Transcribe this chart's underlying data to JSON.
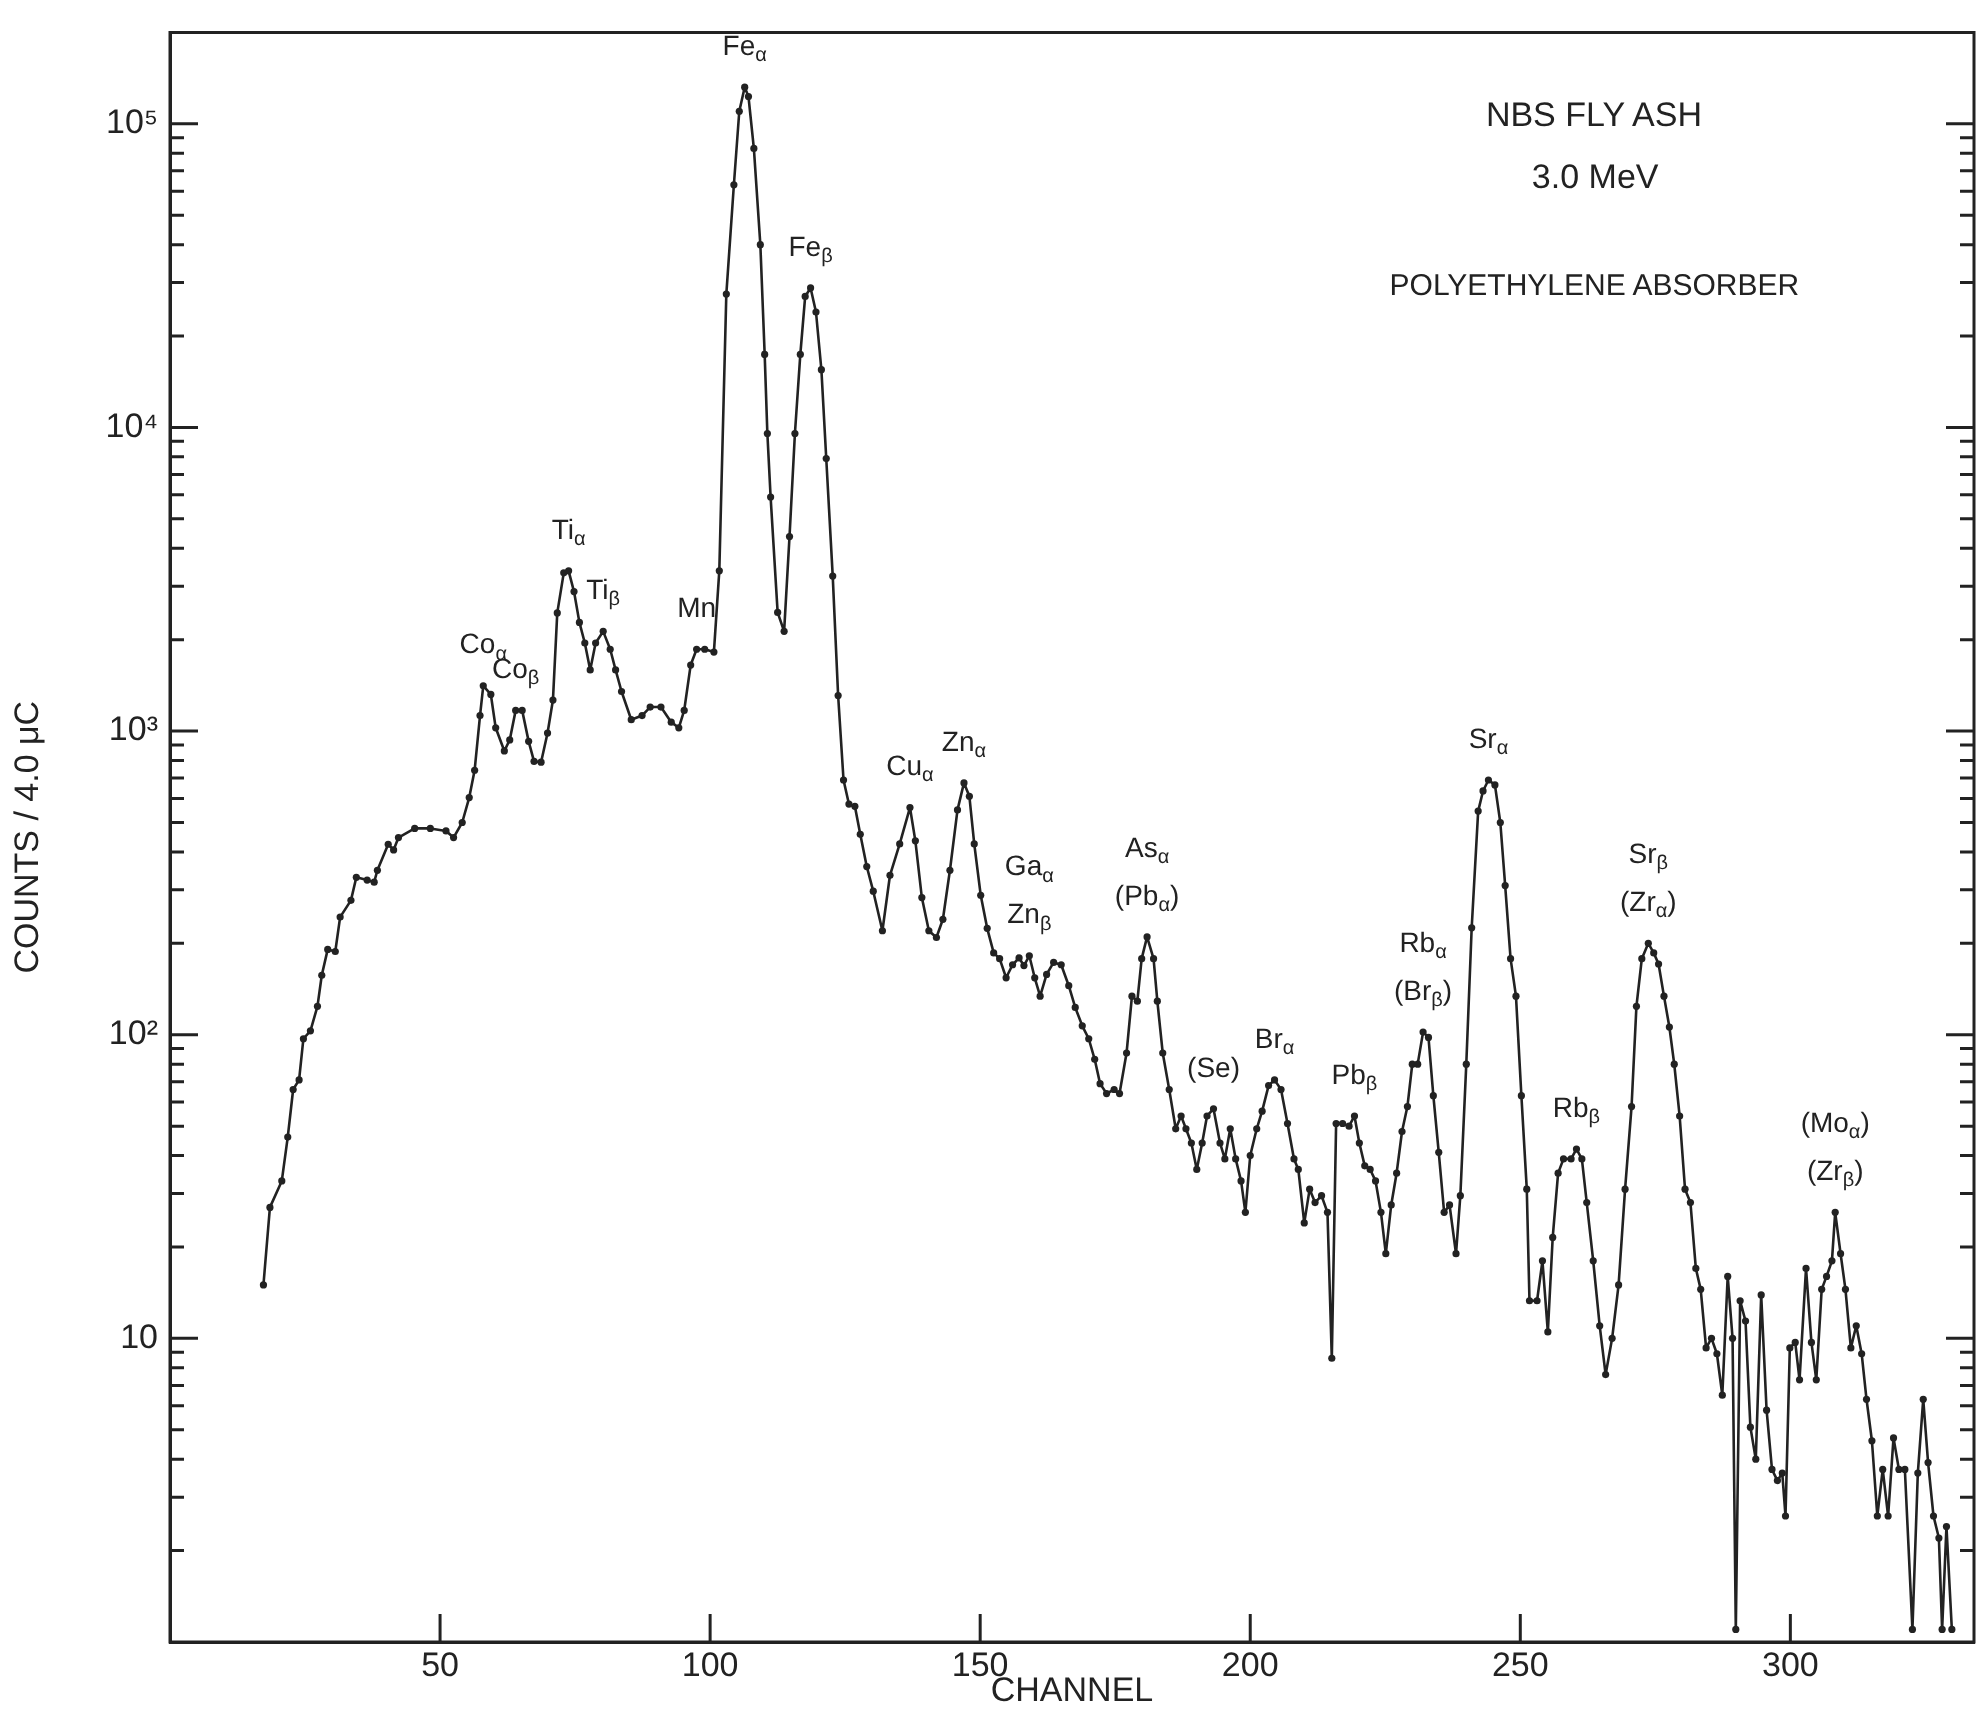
{
  "chart_data": {
    "type": "line",
    "title": "NBS FLY ASH",
    "subtitle": "3.0 MeV",
    "xlabel": "CHANNEL",
    "ylabel": "COUNTS / 4.0 μC",
    "x": [
      17.3,
      18.5,
      20.7,
      21.8,
      22.8,
      23.9,
      24.7,
      26,
      27.3,
      28.1,
      29.2,
      30.6,
      31.5,
      33.5,
      34.5,
      36.5,
      37.8,
      38.4,
      40.4,
      41.4,
      42.3,
      45.3,
      48.2,
      51.1,
      52.5,
      54.1,
      55.4,
      56.4,
      57.4,
      58,
      59.4,
      60.3,
      61.9,
      62.9,
      64,
      65.2,
      66.4,
      67.4,
      68.7,
      69.9,
      70.9,
      71.7,
      72.9,
      73.8,
      74.8,
      75.8,
      76.8,
      77.8,
      78.8,
      80.2,
      81.5,
      82.5,
      83.6,
      85.4,
      87.4,
      88.9,
      90.9,
      92.8,
      94.2,
      95.2,
      96.4,
      97.5,
      99,
      100.7,
      101.7,
      103,
      104.4,
      105.4,
      106.4,
      107.1,
      108.1,
      109.3,
      110.1,
      110.6,
      111.2,
      112.5,
      113.7,
      114.7,
      115.7,
      116.7,
      117.6,
      118.6,
      119.6,
      120.6,
      121.5,
      122.7,
      123.7,
      124.7,
      125.7,
      126.8,
      127.8,
      129,
      130.2,
      131.9,
      133.3,
      135.1,
      137,
      138,
      139.2,
      140.5,
      141.9,
      143.1,
      144.4,
      145.8,
      147,
      148,
      148.9,
      150.1,
      151.3,
      152.5,
      153.6,
      154.8,
      156,
      157.2,
      158.1,
      159.1,
      160.1,
      161.1,
      162.3,
      163.6,
      165,
      166.4,
      167.6,
      168.9,
      170.1,
      171.2,
      172.2,
      173.4,
      174.8,
      175.8,
      177.1,
      178.1,
      179.1,
      179.9,
      180.9,
      182.1,
      182.8,
      183.8,
      185,
      186.2,
      187.2,
      188.1,
      189.1,
      190.1,
      191.1,
      192,
      193.2,
      194.4,
      195.3,
      196.3,
      197.3,
      198.3,
      199.1,
      200,
      201.2,
      202.2,
      203.4,
      204.5,
      205.7,
      206.9,
      208.1,
      208.9,
      210,
      211,
      212,
      213.2,
      214.3,
      215.1,
      215.9,
      217.1,
      218.3,
      219.3,
      220.2,
      221.2,
      222.2,
      223.2,
      224.2,
      225.1,
      226.1,
      227.1,
      228.1,
      229.1,
      230,
      231,
      232,
      233,
      233.9,
      234.9,
      235.9,
      236.9,
      238.1,
      238.9,
      240,
      241,
      242.2,
      243.1,
      244.1,
      245.3,
      246.3,
      247.2,
      248.2,
      249.2,
      250.2,
      251.2,
      251.7,
      253.1,
      254.1,
      255.1,
      256,
      257,
      258,
      259.4,
      260.4,
      261.4,
      262.3,
      263.5,
      264.7,
      265.8,
      267,
      268.2,
      269.4,
      270.6,
      271.5,
      272.5,
      273.7,
      274.7,
      275.6,
      276.6,
      277.6,
      278.5,
      279.5,
      280.5,
      281.5,
      282.5,
      283.4,
      284.4,
      285.4,
      286.4,
      287.4,
      288.4,
      289.3,
      289.9,
      290.7,
      291.7,
      292.6,
      293.6,
      294.6,
      295.6,
      296.6,
      297.6,
      298.5,
      299.1,
      299.9,
      300.9,
      301.7,
      302.9,
      303.9,
      304.8,
      305.8,
      306.7,
      307.7,
      308.3,
      309.3,
      310.2,
      311.2,
      312.2,
      313.2,
      314.1,
      315.1,
      316.1,
      317.1,
      318.1,
      319.1,
      320.1,
      321.2,
      322.6,
      323.6,
      324.6,
      325.5,
      326.5,
      327.5,
      328.1,
      328.9,
      329.9
    ],
    "series": [
      {
        "color": "#222222",
        "values": [
          15,
          27,
          33,
          46,
          66,
          71,
          97,
          103,
          124,
          157,
          191,
          188,
          244,
          277,
          330,
          323,
          318,
          348,
          424,
          406,
          446,
          478,
          478,
          469,
          446,
          500,
          604,
          743,
          1125,
          1410,
          1320,
          1025,
          860,
          935,
          1170,
          1170,
          925,
          795,
          790,
          985,
          1265,
          2450,
          3320,
          3370,
          2880,
          2280,
          1950,
          1590,
          1950,
          2130,
          1860,
          1590,
          1350,
          1090,
          1125,
          1200,
          1200,
          1070,
          1025,
          1170,
          1650,
          1860,
          1860,
          1820,
          3370,
          27500,
          63000,
          110000,
          132000,
          123000,
          83000,
          40000,
          17400,
          9550,
          5900,
          2460,
          2130,
          4370,
          9550,
          17400,
          27000,
          28800,
          24000,
          15500,
          7900,
          3240,
          1310,
          690,
          575,
          565,
          457,
          358,
          297,
          220,
          335,
          425,
          560,
          435,
          283,
          220,
          209,
          240,
          348,
          550,
          675,
          610,
          425,
          288,
          224,
          186,
          178,
          154,
          170,
          179,
          169,
          182,
          154,
          134,
          158,
          173,
          170,
          145,
          123,
          107,
          97,
          83,
          69,
          64,
          66,
          64,
          87,
          134,
          129,
          178,
          210,
          178,
          129,
          87,
          66,
          49,
          54,
          49,
          44,
          36,
          44,
          54,
          57,
          44,
          39,
          49,
          39,
          33,
          26,
          40,
          49,
          56,
          68,
          71,
          66,
          51,
          39,
          36,
          24,
          31,
          28,
          29.5,
          26,
          8.6,
          51,
          51,
          50,
          54,
          44,
          37,
          36,
          33,
          26,
          19,
          27.5,
          35,
          48,
          58,
          80,
          80,
          102,
          98,
          63,
          41,
          26,
          27.5,
          19,
          29.5,
          80,
          225,
          545,
          635,
          690,
          665,
          500,
          310,
          178,
          134,
          63,
          31,
          13.3,
          13.3,
          18,
          10.5,
          21.5,
          35,
          39,
          39,
          42,
          39,
          28,
          18,
          11,
          7.6,
          10,
          15,
          31,
          58,
          124,
          178,
          200,
          186,
          171,
          134,
          106,
          80,
          54,
          31,
          28,
          17,
          14.5,
          9.3,
          10,
          8.9,
          6.5,
          16,
          10,
          1.1,
          13.3,
          11.4,
          5.1,
          4,
          13.9,
          5.8,
          3.7,
          3.4,
          3.6,
          2.6,
          9.3,
          9.7,
          7.3,
          17,
          9.7,
          7.3,
          14.5,
          16,
          18,
          26,
          19,
          14.5,
          9.3,
          11,
          8.9,
          6.3,
          4.6,
          2.6,
          3.7,
          2.6,
          4.7,
          3.7,
          3.7,
          1.1,
          3.6,
          6.3,
          3.9,
          2.6,
          2.2,
          1.1,
          2.4,
          1.1
        ]
      }
    ],
    "xlim": [
      0,
      334
    ],
    "xticks": [
      50,
      100,
      150,
      200,
      250,
      300
    ],
    "log": true,
    "ylim": [
      1,
      200000
    ],
    "yticks": [
      {
        "value": 2,
        "label": null
      },
      {
        "value": 3,
        "label": null
      },
      {
        "value": 4,
        "label": null
      },
      {
        "value": 5,
        "label": null
      },
      {
        "value": 6,
        "label": null
      },
      {
        "value": 7,
        "label": null
      },
      {
        "value": 8,
        "label": null
      },
      {
        "value": 9,
        "label": null
      },
      10,
      {
        "value": 20,
        "label": null
      },
      {
        "value": 30,
        "label": null
      },
      {
        "value": 40,
        "label": null
      },
      {
        "value": 50,
        "label": null
      },
      {
        "value": 60,
        "label": null
      },
      {
        "value": 70,
        "label": null
      },
      {
        "value": 80,
        "label": null
      },
      {
        "value": 90,
        "label": null
      },
      {
        "value": 100,
        "label": "10²"
      },
      {
        "value": 200,
        "label": null
      },
      {
        "value": 300,
        "label": null
      },
      {
        "value": 400,
        "label": null
      },
      {
        "value": 500,
        "label": null
      },
      {
        "value": 600,
        "label": null
      },
      {
        "value": 700,
        "label": null
      },
      {
        "value": 800,
        "label": null
      },
      {
        "value": 900,
        "label": null
      },
      {
        "value": 1000,
        "label": "10³"
      },
      {
        "value": 2000,
        "label": null
      },
      {
        "value": 3000,
        "label": null
      },
      {
        "value": 4000,
        "label": null
      },
      {
        "value": 5000,
        "label": null
      },
      {
        "value": 6000,
        "label": null
      },
      {
        "value": 7000,
        "label": null
      },
      {
        "value": 8000,
        "label": null
      },
      {
        "value": 9000,
        "label": null
      },
      {
        "value": 10000,
        "label": "10⁴"
      },
      {
        "value": 20000,
        "label": null
      },
      {
        "value": 30000,
        "label": null
      },
      {
        "value": 40000,
        "label": null
      },
      {
        "value": 50000,
        "label": null
      },
      {
        "value": 60000,
        "label": null
      },
      {
        "value": 70000,
        "label": null
      },
      {
        "value": 80000,
        "label": null
      },
      {
        "value": 90000,
        "label": null
      },
      {
        "value": 100000,
        "label": "10⁵"
      }
    ],
    "grid": false,
    "legend": false,
    "marker": "circle",
    "line_style": "solid",
    "annotations": [
      "POLYETHYLENE ABSORBER",
      {
        "text": "Fe$_{α}$",
        "x": 106.4,
        "y": 132000
      },
      {
        "text": "Fe$_{β}$",
        "x": 118.6,
        "y": 28800
      },
      {
        "text": "Ti$_{α}$",
        "x": 73.8,
        "y": 3370
      },
      {
        "text": "Ti$_{β}$",
        "x": 80.2,
        "y": 2130
      },
      {
        "text": "Co$_{α}$",
        "x": 58,
        "y": 1410
      },
      {
        "text": "Co$_{β}$",
        "x": 64,
        "y": 1170
      },
      {
        "text": "Mn",
        "x": 97.5,
        "y": 1860
      },
      {
        "text": "Cu$_{α}$",
        "x": 137,
        "y": 560
      },
      {
        "text": "Zn$_{α}$",
        "x": 147,
        "y": 675
      },
      {
        "text": "Ga$_{α}$",
        "x": 159.1,
        "y": 182
      },
      {
        "text": "Zn$_{β}$",
        "x": 159.1,
        "y": 182
      },
      {
        "text": "As$_{α}$",
        "x": 180.9,
        "y": 210
      },
      {
        "text": "(Pb$_{α}$)",
        "x": 180.9,
        "y": 210
      },
      {
        "text": "(Se)",
        "x": 193.2,
        "y": 57
      },
      {
        "text": "Br$_{α}$",
        "x": 204.5,
        "y": 71
      },
      {
        "text": "Pb$_{β}$",
        "x": 219.3,
        "y": 54
      },
      {
        "text": "Rb$_{α}$",
        "x": 232,
        "y": 102
      },
      {
        "text": "(Br$_{β}$)",
        "x": 232,
        "y": 102
      },
      {
        "text": "Sr$_{α}$",
        "x": 244.1,
        "y": 690
      },
      {
        "text": "Rb$_{β}$",
        "x": 260.4,
        "y": 42
      },
      {
        "text": "Sr$_{β}$",
        "x": 273.7,
        "y": 200
      },
      {
        "text": "(Zr$_{α}$)",
        "x": 273.7,
        "y": 200
      },
      {
        "text": "(Mo$_{α}$)",
        "x": 308.3,
        "y": 26
      },
      {
        "text": "(Zr$_{β}$)",
        "x": 308.3,
        "y": 26
      }
    ]
  }
}
